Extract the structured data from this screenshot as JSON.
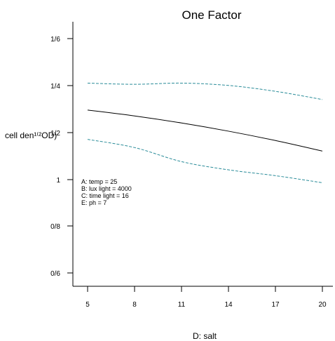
{
  "chart_data": {
    "type": "line",
    "title": "One Factor",
    "xlabel": "D: salt",
    "ylabel": "cell den¹⁽²OD)",
    "x_ticks": [
      "5",
      "8",
      "11",
      "14",
      "17",
      "20"
    ],
    "y_ticks": [
      "0/6",
      "0/8",
      "1",
      "1/2",
      "1/4",
      "1/6"
    ],
    "x": [
      5,
      8,
      11,
      14,
      17,
      20
    ],
    "xlim": [
      4,
      21
    ],
    "ylim": [
      0.55,
      1.7
    ],
    "series": [
      {
        "role": "prediction",
        "style": "solid",
        "color": "#000000",
        "values": [
          1.295,
          1.27,
          1.24,
          1.205,
          1.165,
          1.12
        ]
      },
      {
        "role": "upper-band",
        "style": "dashed",
        "color": "#2a8c99",
        "values": [
          1.41,
          1.405,
          1.41,
          1.4,
          1.375,
          1.34
        ]
      },
      {
        "role": "lower-band",
        "style": "dashed",
        "color": "#2a8c99",
        "values": [
          1.17,
          1.135,
          1.075,
          1.04,
          1.015,
          0.985
        ]
      }
    ],
    "annotations": [
      "A: temp = 25",
      "B: lux light = 4000",
      "C: time light = 16",
      "E: ph = 7"
    ]
  }
}
